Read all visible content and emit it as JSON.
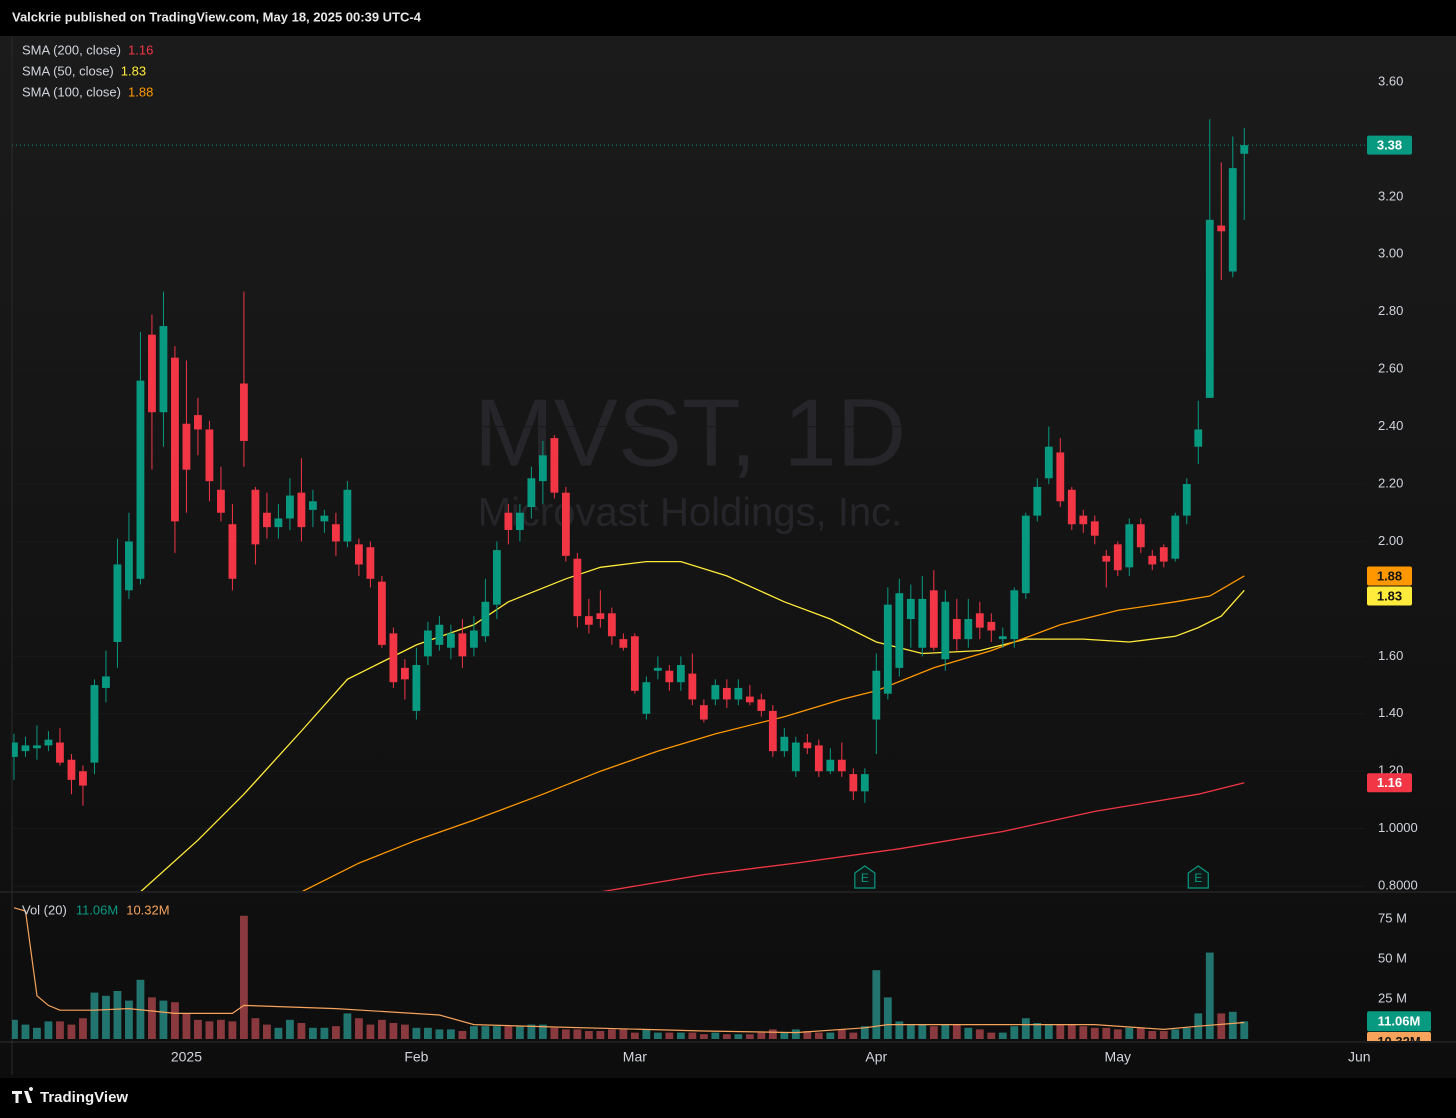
{
  "header": "Valckrie published on TradingView.com, May 18, 2025 00:39 UTC-4",
  "footer": "TradingView",
  "chart_data": {
    "type": "candlestick",
    "symbol": "MVST, 1D",
    "company": "Microvast Holdings, Inc.",
    "up_color": "#089981",
    "down_color": "#f23645",
    "open": [
      1.25,
      1.27,
      1.28,
      1.29,
      1.3,
      1.24,
      1.2,
      1.23,
      1.49,
      1.65,
      1.83,
      1.87,
      2.72,
      2.45,
      2.64,
      2.41,
      2.44,
      2.39,
      2.18,
      2.06,
      2.55,
      2.18,
      2.1,
      2.05,
      2.08,
      2.17,
      2.11,
      2.07,
      2.06,
      2.0,
      1.99,
      1.98,
      1.86,
      1.68,
      1.56,
      1.41,
      1.6,
      1.64,
      1.63,
      1.68,
      1.63,
      1.67,
      1.78,
      2.1,
      2.04,
      2.12,
      2.21,
      2.36,
      2.17,
      1.94,
      1.74,
      1.75,
      1.75,
      1.66,
      1.67,
      1.4,
      1.55,
      1.55,
      1.51,
      1.54,
      1.43,
      1.45,
      1.49,
      1.45,
      1.46,
      1.45,
      1.41,
      1.27,
      1.2,
      1.3,
      1.29,
      1.2,
      1.24,
      1.19,
      1.13,
      1.38,
      1.47,
      1.56,
      1.73,
      1.63,
      1.83,
      1.59,
      1.73,
      1.66,
      1.75,
      1.72,
      1.66,
      1.66,
      1.82,
      2.09,
      2.22,
      2.31,
      2.18,
      2.09,
      2.07,
      1.95,
      1.99,
      1.91,
      2.06,
      1.95,
      1.98,
      1.94,
      2.09,
      2.33,
      2.5,
      3.1,
      2.94,
      3.35
    ],
    "high": [
      1.33,
      1.32,
      1.36,
      1.34,
      1.35,
      1.26,
      1.22,
      1.52,
      1.62,
      2.01,
      2.1,
      2.73,
      2.79,
      2.87,
      2.68,
      2.63,
      2.5,
      2.42,
      2.26,
      2.13,
      2.87,
      2.19,
      2.17,
      2.13,
      2.22,
      2.29,
      2.18,
      2.11,
      2.1,
      2.21,
      2.01,
      2.0,
      1.88,
      1.7,
      1.59,
      1.63,
      1.72,
      1.74,
      1.71,
      1.73,
      1.74,
      1.87,
      2.0,
      2.13,
      2.13,
      2.26,
      2.35,
      2.37,
      2.19,
      1.96,
      1.8,
      1.83,
      1.77,
      1.68,
      1.68,
      1.53,
      1.6,
      1.57,
      1.6,
      1.61,
      1.45,
      1.52,
      1.52,
      1.52,
      1.5,
      1.47,
      1.43,
      1.35,
      1.32,
      1.33,
      1.31,
      1.28,
      1.3,
      1.21,
      1.21,
      1.61,
      1.84,
      1.87,
      1.85,
      1.88,
      1.9,
      1.83,
      1.8,
      1.8,
      1.79,
      1.75,
      1.7,
      1.84,
      2.1,
      2.22,
      2.4,
      2.36,
      2.19,
      2.11,
      2.09,
      1.97,
      2.0,
      2.08,
      2.08,
      1.97,
      1.99,
      2.1,
      2.22,
      2.49,
      3.47,
      3.32,
      3.41,
      3.44
    ],
    "low": [
      1.17,
      1.25,
      1.24,
      1.27,
      1.22,
      1.12,
      1.08,
      1.19,
      1.44,
      1.56,
      1.8,
      1.85,
      2.25,
      2.33,
      1.96,
      2.1,
      2.3,
      2.14,
      2.07,
      1.83,
      2.26,
      1.92,
      2.01,
      2.01,
      2.04,
      2.0,
      2.05,
      2.03,
      1.95,
      1.98,
      1.88,
      1.84,
      1.63,
      1.49,
      1.45,
      1.38,
      1.57,
      1.62,
      1.59,
      1.56,
      1.6,
      1.65,
      1.73,
      1.99,
      2.0,
      2.08,
      2.13,
      2.15,
      1.93,
      1.7,
      1.68,
      1.7,
      1.64,
      1.62,
      1.47,
      1.38,
      1.52,
      1.48,
      1.48,
      1.43,
      1.37,
      1.43,
      1.42,
      1.43,
      1.43,
      1.39,
      1.25,
      1.25,
      1.18,
      1.26,
      1.18,
      1.19,
      1.18,
      1.1,
      1.09,
      1.26,
      1.45,
      1.53,
      1.63,
      1.6,
      1.62,
      1.55,
      1.62,
      1.63,
      1.66,
      1.65,
      1.63,
      1.63,
      1.8,
      2.07,
      2.2,
      2.12,
      2.04,
      2.03,
      1.99,
      1.84,
      1.88,
      1.88,
      1.96,
      1.9,
      1.91,
      1.93,
      2.06,
      2.27,
      2.5,
      2.91,
      2.92,
      3.12
    ],
    "close": [
      1.3,
      1.29,
      1.29,
      1.31,
      1.23,
      1.17,
      1.15,
      1.5,
      1.53,
      1.92,
      2.0,
      2.56,
      2.45,
      2.75,
      2.07,
      2.25,
      2.39,
      2.21,
      2.1,
      1.87,
      2.35,
      1.99,
      2.05,
      2.08,
      2.16,
      2.05,
      2.14,
      2.09,
      2.0,
      2.18,
      1.92,
      1.87,
      1.64,
      1.51,
      1.52,
      1.57,
      1.69,
      1.71,
      1.68,
      1.6,
      1.69,
      1.79,
      1.97,
      2.04,
      2.1,
      2.22,
      2.3,
      2.17,
      1.95,
      1.74,
      1.71,
      1.73,
      1.67,
      1.63,
      1.48,
      1.51,
      1.56,
      1.51,
      1.57,
      1.45,
      1.38,
      1.5,
      1.45,
      1.49,
      1.44,
      1.41,
      1.27,
      1.32,
      1.3,
      1.28,
      1.2,
      1.24,
      1.2,
      1.13,
      1.19,
      1.55,
      1.78,
      1.82,
      1.8,
      1.8,
      1.63,
      1.79,
      1.66,
      1.73,
      1.7,
      1.69,
      1.67,
      1.83,
      2.09,
      2.19,
      2.33,
      2.14,
      2.06,
      2.06,
      2.02,
      1.93,
      1.9,
      2.06,
      1.98,
      1.92,
      1.93,
      2.09,
      2.2,
      2.39,
      3.12,
      3.08,
      3.3,
      3.38
    ],
    "xlim": [
      -0.17,
      117.5
    ],
    "xticks": [
      {
        "value": 15,
        "label": "2025"
      },
      {
        "value": 35,
        "label": "Feb"
      },
      {
        "value": 54,
        "label": "Mar"
      },
      {
        "value": 75,
        "label": "Apr"
      },
      {
        "value": 96,
        "label": "May"
      },
      {
        "value": 117,
        "label": "Jun"
      }
    ],
    "ylim": [
      0.783,
      3.76
    ],
    "yticks": [
      {
        "value": 3.6,
        "label": "3.60"
      },
      {
        "value": 3.2,
        "label": "3.20"
      },
      {
        "value": 3.0,
        "label": "3.00"
      },
      {
        "value": 2.8,
        "label": "2.80"
      },
      {
        "value": 2.6,
        "label": "2.60"
      },
      {
        "value": 2.4,
        "label": "2.40"
      },
      {
        "value": 2.2,
        "label": "2.20"
      },
      {
        "value": 2.0,
        "label": "2.00"
      },
      {
        "value": 1.6,
        "label": "1.60"
      },
      {
        "value": 1.4,
        "label": "1.40"
      },
      {
        "value": 1.2,
        "label": "1.20"
      },
      {
        "value": 1.0,
        "label": "1.0000"
      },
      {
        "value": 0.8,
        "label": "0.8000"
      }
    ],
    "sma": [
      {
        "name": "SMA (200, close)",
        "color": "#f23645",
        "x": [
          51,
          60,
          68,
          77,
          86,
          94,
          103,
          107
        ],
        "values": [
          0.78,
          0.84,
          0.88,
          0.93,
          0.99,
          1.06,
          1.12,
          1.16
        ]
      },
      {
        "name": "SMA (50, close)",
        "color": "#ffeb3b",
        "x": [
          11,
          16,
          20,
          25,
          29,
          31,
          35,
          40,
          43,
          48,
          51,
          55,
          58,
          62,
          67,
          71,
          75,
          79,
          84,
          88,
          93,
          97,
          101,
          103,
          105,
          107
        ],
        "values": [
          0.78,
          0.96,
          1.12,
          1.34,
          1.52,
          1.56,
          1.64,
          1.71,
          1.79,
          1.87,
          1.91,
          1.93,
          1.93,
          1.88,
          1.79,
          1.73,
          1.65,
          1.61,
          1.62,
          1.66,
          1.66,
          1.65,
          1.67,
          1.7,
          1.74,
          1.83
        ]
      },
      {
        "name": "SMA (100, close)",
        "color": "#ff9800",
        "x": [
          25,
          30,
          35,
          40,
          46,
          51,
          56,
          61,
          67,
          72,
          75,
          80,
          85,
          91,
          96,
          101,
          104,
          107
        ],
        "values": [
          0.78,
          0.88,
          0.96,
          1.03,
          1.12,
          1.2,
          1.27,
          1.33,
          1.39,
          1.45,
          1.48,
          1.56,
          1.62,
          1.71,
          1.76,
          1.79,
          1.81,
          1.88
        ]
      }
    ],
    "earnings": {
      "label": "E",
      "x": [
        74,
        103
      ],
      "color": "#089981"
    },
    "volume": {
      "name": "Vol (20)",
      "up_color": "#22756f",
      "down_color": "#8a3a3e",
      "values": [
        12,
        9,
        7,
        11,
        11,
        9,
        13,
        29,
        27,
        30,
        24,
        37,
        26,
        24,
        23,
        16,
        12,
        11,
        12,
        11,
        77,
        13,
        9,
        7,
        12,
        10,
        7,
        7,
        8,
        16,
        13,
        9,
        12,
        10,
        9,
        7,
        7,
        6,
        6,
        5,
        8,
        8,
        8,
        8,
        8,
        9,
        9,
        7,
        6,
        6,
        5,
        5,
        6,
        6,
        4,
        6,
        4,
        4,
        4,
        4,
        3,
        4,
        3,
        3,
        3,
        4,
        6,
        4,
        6,
        5,
        4,
        4,
        6,
        4,
        8,
        43,
        26,
        11,
        9,
        9,
        8,
        9,
        9,
        7,
        6,
        4,
        4,
        8,
        13,
        10,
        9,
        9,
        9,
        8,
        7,
        7,
        6,
        7,
        7,
        5,
        5,
        6,
        7,
        16,
        54,
        16,
        17,
        11.06
      ],
      "value_label": "11.06M",
      "ylim": [
        0,
        88.75
      ],
      "yticks": [
        {
          "value": 75,
          "label": "75 M"
        },
        {
          "value": 50,
          "label": "50 M"
        },
        {
          "value": 25,
          "label": "25 M"
        }
      ],
      "ma": {
        "color": "#f7a35c",
        "x": [
          0,
          1,
          2,
          3,
          4,
          7,
          10,
          14,
          19,
          20,
          28,
          37,
          40,
          47,
          60,
          68,
          74,
          76,
          82,
          87,
          94,
          100,
          103,
          107
        ],
        "values": [
          82,
          80,
          27,
          21,
          18,
          18,
          19,
          16,
          16,
          21,
          19,
          15,
          9,
          7.5,
          5,
          4,
          7,
          9,
          9,
          9,
          9,
          6,
          8,
          10.32
        ],
        "value_label": "10.32M"
      }
    }
  }
}
